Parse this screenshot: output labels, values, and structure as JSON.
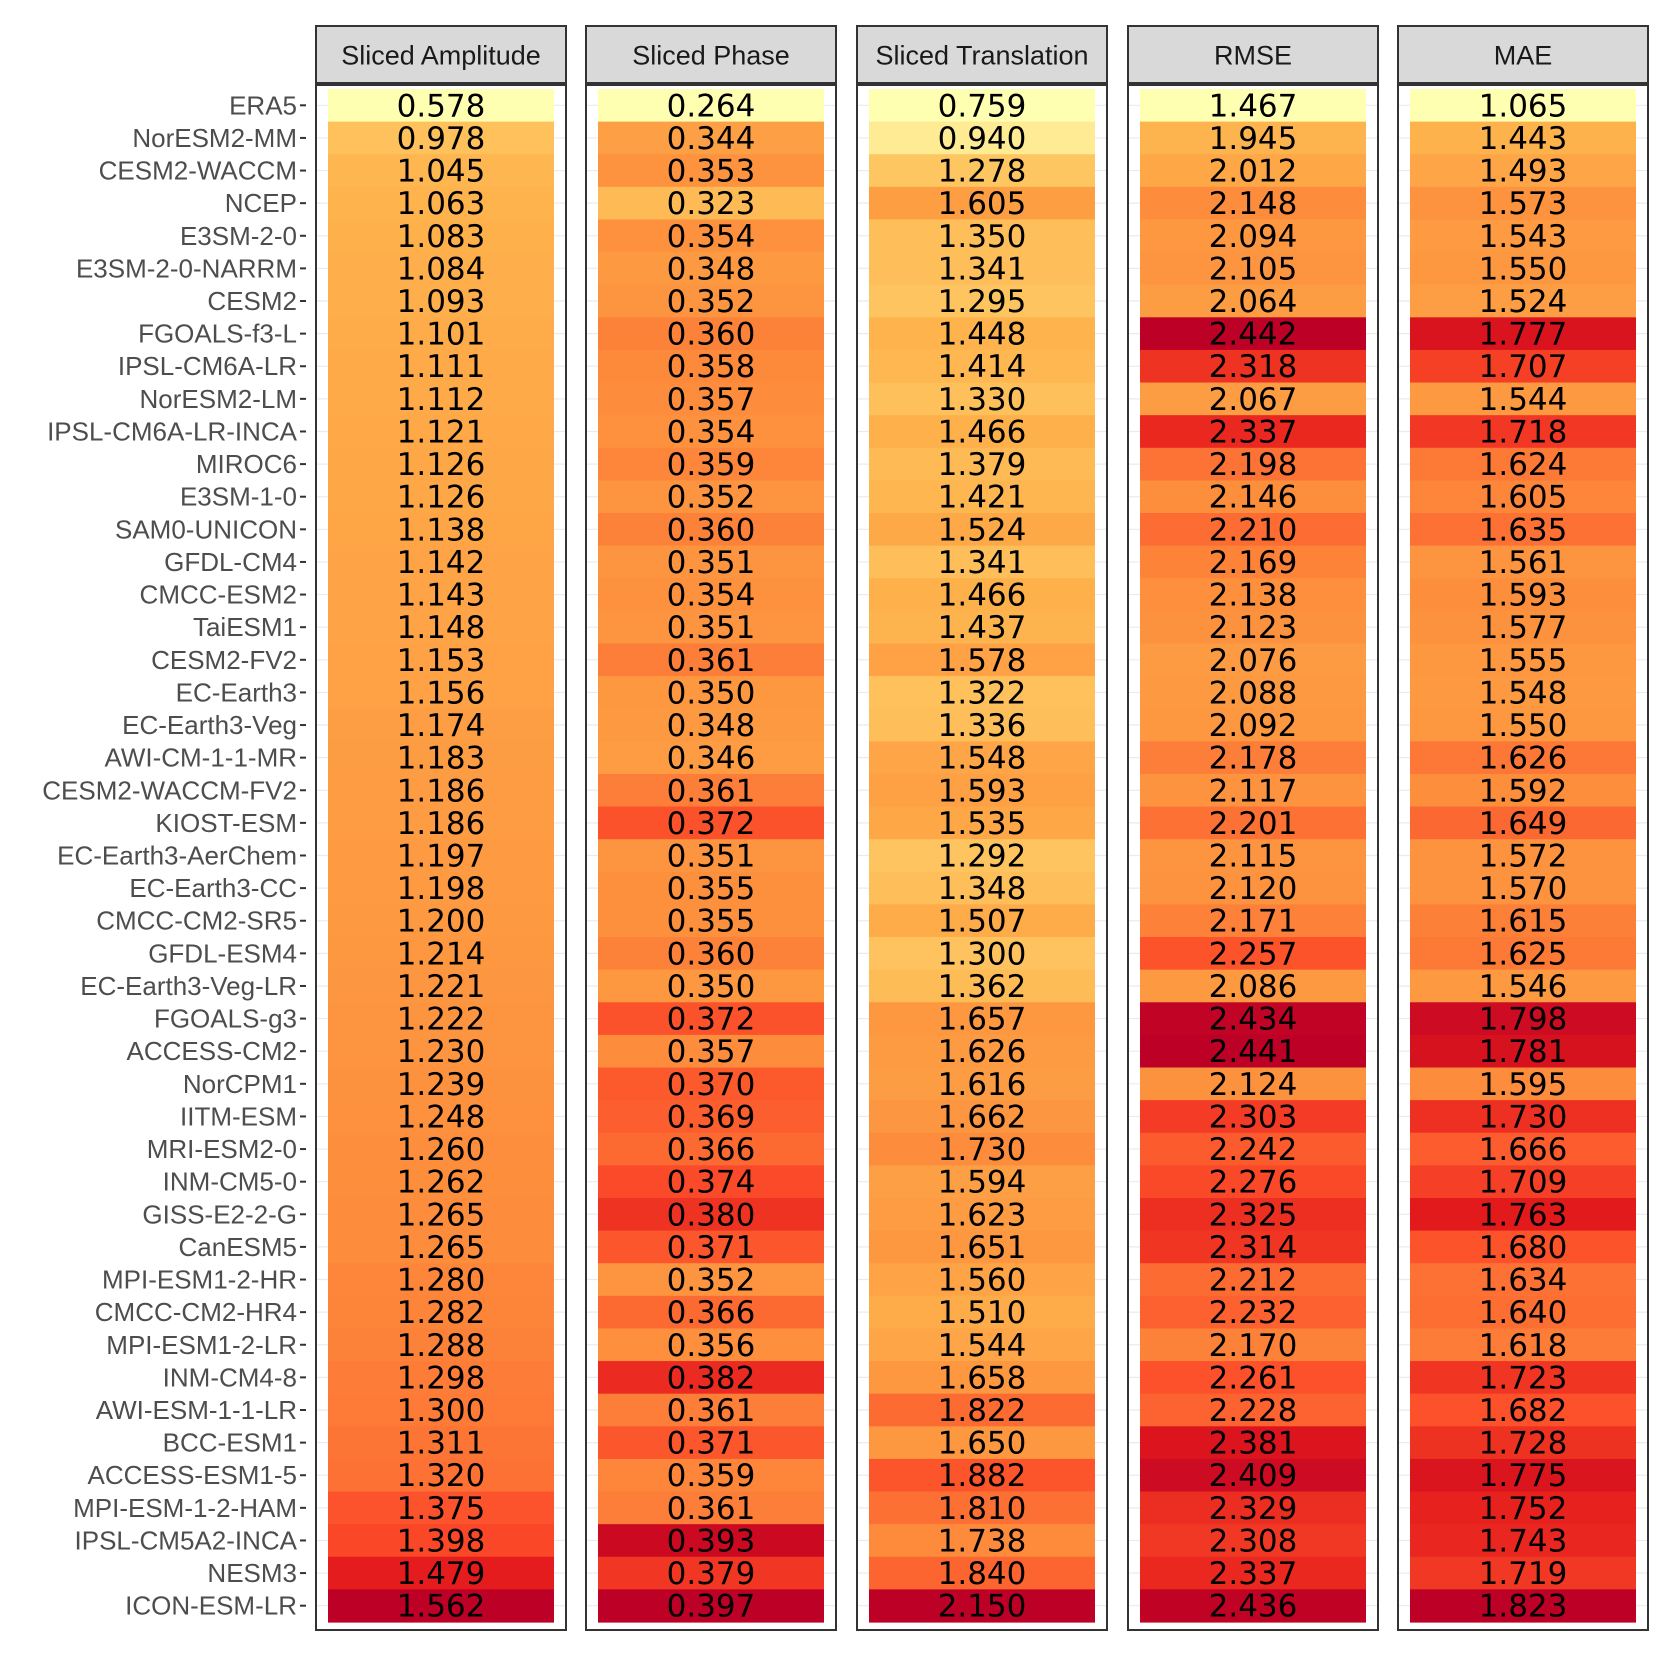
{
  "chart_data": {
    "type": "heatmap",
    "title": "",
    "xlabel": "",
    "ylabel": "",
    "legend": "none",
    "color_scale": {
      "palette": "YlOrRd",
      "low_color": "#ffffb2",
      "mid_color": "#feb24c",
      "high_color": "#bd0026",
      "per_panel": true
    },
    "grid": true,
    "panels": [
      "Sliced Amplitude",
      "Sliced Phase",
      "Sliced Translation",
      "RMSE",
      "MAE"
    ],
    "rows": [
      "ERA5",
      "NorESM2-MM",
      "CESM2-WACCM",
      "NCEP",
      "E3SM-2-0",
      "E3SM-2-0-NARRM",
      "CESM2",
      "FGOALS-f3-L",
      "IPSL-CM6A-LR",
      "NorESM2-LM",
      "IPSL-CM6A-LR-INCA",
      "MIROC6",
      "E3SM-1-0",
      "SAM0-UNICON",
      "GFDL-CM4",
      "CMCC-ESM2",
      "TaiESM1",
      "CESM2-FV2",
      "EC-Earth3",
      "EC-Earth3-Veg",
      "AWI-CM-1-1-MR",
      "CESM2-WACCM-FV2",
      "KIOST-ESM",
      "EC-Earth3-AerChem",
      "EC-Earth3-CC",
      "CMCC-CM2-SR5",
      "GFDL-ESM4",
      "EC-Earth3-Veg-LR",
      "FGOALS-g3",
      "ACCESS-CM2",
      "NorCPM1",
      "IITM-ESM",
      "MRI-ESM2-0",
      "INM-CM5-0",
      "GISS-E2-2-G",
      "CanESM5",
      "MPI-ESM1-2-HR",
      "CMCC-CM2-HR4",
      "MPI-ESM1-2-LR",
      "INM-CM4-8",
      "AWI-ESM-1-1-LR",
      "BCC-ESM1",
      "ACCESS-ESM1-5",
      "MPI-ESM-1-2-HAM",
      "IPSL-CM5A2-INCA",
      "NESM3",
      "ICON-ESM-LR"
    ],
    "values": [
      [
        "0.578",
        "0.978",
        "1.045",
        "1.063",
        "1.083",
        "1.084",
        "1.093",
        "1.101",
        "1.111",
        "1.112",
        "1.121",
        "1.126",
        "1.126",
        "1.138",
        "1.142",
        "1.143",
        "1.148",
        "1.153",
        "1.156",
        "1.174",
        "1.183",
        "1.186",
        "1.186",
        "1.197",
        "1.198",
        "1.200",
        "1.214",
        "1.221",
        "1.222",
        "1.230",
        "1.239",
        "1.248",
        "1.260",
        "1.262",
        "1.265",
        "1.265",
        "1.280",
        "1.282",
        "1.288",
        "1.298",
        "1.300",
        "1.311",
        "1.320",
        "1.375",
        "1.398",
        "1.479",
        "1.562"
      ],
      [
        "0.264",
        "0.344",
        "0.353",
        "0.323",
        "0.354",
        "0.348",
        "0.352",
        "0.360",
        "0.358",
        "0.357",
        "0.354",
        "0.359",
        "0.352",
        "0.360",
        "0.351",
        "0.354",
        "0.351",
        "0.361",
        "0.350",
        "0.348",
        "0.346",
        "0.361",
        "0.372",
        "0.351",
        "0.355",
        "0.355",
        "0.360",
        "0.350",
        "0.372",
        "0.357",
        "0.370",
        "0.369",
        "0.366",
        "0.374",
        "0.380",
        "0.371",
        "0.352",
        "0.366",
        "0.356",
        "0.382",
        "0.361",
        "0.371",
        "0.359",
        "0.361",
        "0.393",
        "0.379",
        "0.397"
      ],
      [
        "0.759",
        "0.940",
        "1.278",
        "1.605",
        "1.350",
        "1.341",
        "1.295",
        "1.448",
        "1.414",
        "1.330",
        "1.466",
        "1.379",
        "1.421",
        "1.524",
        "1.341",
        "1.466",
        "1.437",
        "1.578",
        "1.322",
        "1.336",
        "1.548",
        "1.593",
        "1.535",
        "1.292",
        "1.348",
        "1.507",
        "1.300",
        "1.362",
        "1.657",
        "1.626",
        "1.616",
        "1.662",
        "1.730",
        "1.594",
        "1.623",
        "1.651",
        "1.560",
        "1.510",
        "1.544",
        "1.658",
        "1.822",
        "1.650",
        "1.882",
        "1.810",
        "1.738",
        "1.840",
        "2.150"
      ],
      [
        "1.467",
        "1.945",
        "2.012",
        "2.148",
        "2.094",
        "2.105",
        "2.064",
        "2.442",
        "2.318",
        "2.067",
        "2.337",
        "2.198",
        "2.146",
        "2.210",
        "2.169",
        "2.138",
        "2.123",
        "2.076",
        "2.088",
        "2.092",
        "2.178",
        "2.117",
        "2.201",
        "2.115",
        "2.120",
        "2.171",
        "2.257",
        "2.086",
        "2.434",
        "2.441",
        "2.124",
        "2.303",
        "2.242",
        "2.276",
        "2.325",
        "2.314",
        "2.212",
        "2.232",
        "2.170",
        "2.261",
        "2.228",
        "2.381",
        "2.409",
        "2.329",
        "2.308",
        "2.337",
        "2.436"
      ],
      [
        "1.065",
        "1.443",
        "1.493",
        "1.573",
        "1.543",
        "1.550",
        "1.524",
        "1.777",
        "1.707",
        "1.544",
        "1.718",
        "1.624",
        "1.605",
        "1.635",
        "1.561",
        "1.593",
        "1.577",
        "1.555",
        "1.548",
        "1.550",
        "1.626",
        "1.592",
        "1.649",
        "1.572",
        "1.570",
        "1.615",
        "1.625",
        "1.546",
        "1.798",
        "1.781",
        "1.595",
        "1.730",
        "1.666",
        "1.709",
        "1.763",
        "1.680",
        "1.634",
        "1.640",
        "1.618",
        "1.723",
        "1.682",
        "1.728",
        "1.775",
        "1.752",
        "1.743",
        "1.719",
        "1.823"
      ]
    ]
  }
}
